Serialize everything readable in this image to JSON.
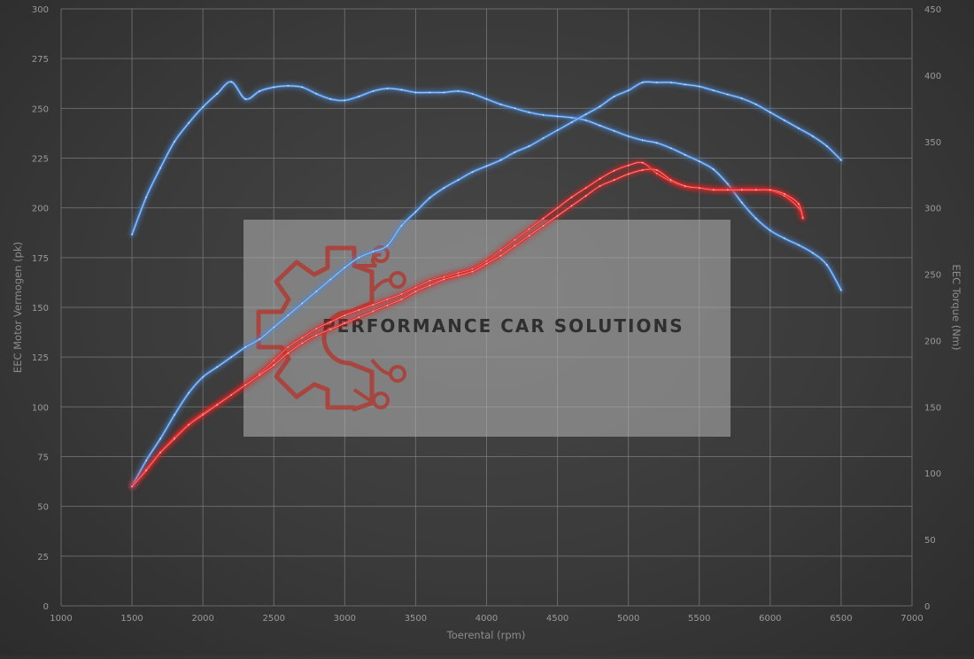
{
  "chart_data": {
    "type": "line",
    "title": "",
    "xlabel": "Toerental (rpm)",
    "ylabel_left": "EEC Motor Vermogen (pk)",
    "ylabel_right": "EEC Torque (Nm)",
    "xlim": [
      1000,
      7000
    ],
    "ylim_left": [
      0,
      300
    ],
    "ylim_right": [
      0,
      450
    ],
    "x_ticks": [
      1000,
      1500,
      2000,
      2500,
      3000,
      3500,
      4000,
      4500,
      5000,
      5500,
      6000,
      6500,
      7000
    ],
    "y_left_ticks": [
      0,
      25,
      50,
      75,
      100,
      125,
      150,
      175,
      200,
      225,
      250,
      275,
      300
    ],
    "y_right_ticks": [
      0,
      50,
      100,
      150,
      200,
      250,
      300,
      350,
      400,
      450
    ],
    "grid": true,
    "series": [
      {
        "axis": "right",
        "color": "#4d8fe0",
        "points": [
          [
            1500,
            280
          ],
          [
            1600,
            308
          ],
          [
            1700,
            330
          ],
          [
            1800,
            350
          ],
          [
            1900,
            364
          ],
          [
            2000,
            376
          ],
          [
            2100,
            386
          ],
          [
            2200,
            395
          ],
          [
            2300,
            382
          ],
          [
            2400,
            388
          ],
          [
            2500,
            391
          ],
          [
            2600,
            392
          ],
          [
            2700,
            391
          ],
          [
            2800,
            386
          ],
          [
            2900,
            382
          ],
          [
            3000,
            381
          ],
          [
            3100,
            384
          ],
          [
            3200,
            388
          ],
          [
            3300,
            390
          ],
          [
            3400,
            389
          ],
          [
            3500,
            387
          ],
          [
            3600,
            387
          ],
          [
            3700,
            387
          ],
          [
            3800,
            388
          ],
          [
            3900,
            386
          ],
          [
            4000,
            382
          ],
          [
            4100,
            378
          ],
          [
            4200,
            375
          ],
          [
            4300,
            372
          ],
          [
            4400,
            370
          ],
          [
            4500,
            369
          ],
          [
            4600,
            368
          ],
          [
            4700,
            366
          ],
          [
            4800,
            362
          ],
          [
            4900,
            358
          ],
          [
            5000,
            354
          ],
          [
            5100,
            351
          ],
          [
            5200,
            349
          ],
          [
            5300,
            345
          ],
          [
            5400,
            340
          ],
          [
            5500,
            335
          ],
          [
            5600,
            329
          ],
          [
            5700,
            318
          ],
          [
            5800,
            304
          ],
          [
            5900,
            292
          ],
          [
            6000,
            283
          ],
          [
            6100,
            277
          ],
          [
            6200,
            272
          ],
          [
            6300,
            266
          ],
          [
            6400,
            257
          ],
          [
            6500,
            238
          ]
        ]
      },
      {
        "axis": "right",
        "color": "#e02828",
        "points": [
          [
            1500,
            90
          ],
          [
            1600,
            103
          ],
          [
            1700,
            116
          ],
          [
            1800,
            127
          ],
          [
            1900,
            137
          ],
          [
            2000,
            145
          ],
          [
            2100,
            152
          ],
          [
            2200,
            159
          ],
          [
            2300,
            167
          ],
          [
            2400,
            175
          ],
          [
            2500,
            185
          ],
          [
            2600,
            195
          ],
          [
            2700,
            202
          ],
          [
            2800,
            209
          ],
          [
            2900,
            214
          ],
          [
            3000,
            219
          ],
          [
            3100,
            223
          ],
          [
            3200,
            227
          ],
          [
            3300,
            231
          ],
          [
            3400,
            235
          ],
          [
            3500,
            240
          ],
          [
            3600,
            245
          ],
          [
            3700,
            248
          ],
          [
            3800,
            251
          ],
          [
            3900,
            254
          ],
          [
            4000,
            260
          ],
          [
            4100,
            268
          ],
          [
            4200,
            276
          ],
          [
            4300,
            284
          ],
          [
            4400,
            292
          ],
          [
            4500,
            300
          ],
          [
            4600,
            308
          ],
          [
            4700,
            315
          ],
          [
            4800,
            322
          ],
          [
            4900,
            328
          ],
          [
            5000,
            332
          ],
          [
            5100,
            334
          ],
          [
            5200,
            326
          ],
          [
            5300,
            320
          ],
          [
            5400,
            316
          ],
          [
            5500,
            315
          ],
          [
            5600,
            314
          ],
          [
            5700,
            314
          ],
          [
            5800,
            314
          ],
          [
            5900,
            314
          ],
          [
            6000,
            313
          ],
          [
            6100,
            309
          ],
          [
            6200,
            300
          ],
          [
            6230,
            292
          ]
        ]
      },
      {
        "axis": "left",
        "color": "#4d8fe0",
        "points": [
          [
            1500,
            60
          ],
          [
            1600,
            73
          ],
          [
            1700,
            84
          ],
          [
            1800,
            96
          ],
          [
            1900,
            107
          ],
          [
            2000,
            115
          ],
          [
            2100,
            120
          ],
          [
            2200,
            125
          ],
          [
            2300,
            130
          ],
          [
            2400,
            134
          ],
          [
            2500,
            140
          ],
          [
            2600,
            146
          ],
          [
            2700,
            152
          ],
          [
            2800,
            158
          ],
          [
            2900,
            164
          ],
          [
            3000,
            170
          ],
          [
            3100,
            175
          ],
          [
            3200,
            178
          ],
          [
            3300,
            181
          ],
          [
            3400,
            191
          ],
          [
            3500,
            198
          ],
          [
            3600,
            205
          ],
          [
            3700,
            210
          ],
          [
            3800,
            214
          ],
          [
            3900,
            218
          ],
          [
            4000,
            221
          ],
          [
            4100,
            224
          ],
          [
            4200,
            228
          ],
          [
            4300,
            231
          ],
          [
            4400,
            235
          ],
          [
            4500,
            239
          ],
          [
            4600,
            243
          ],
          [
            4700,
            247
          ],
          [
            4800,
            251
          ],
          [
            4900,
            256
          ],
          [
            5000,
            259
          ],
          [
            5100,
            263
          ],
          [
            5200,
            263
          ],
          [
            5300,
            263
          ],
          [
            5400,
            262
          ],
          [
            5500,
            261
          ],
          [
            5600,
            259
          ],
          [
            5700,
            257
          ],
          [
            5800,
            255
          ],
          [
            5900,
            252
          ],
          [
            6000,
            248
          ],
          [
            6100,
            244
          ],
          [
            6200,
            240
          ],
          [
            6300,
            236
          ],
          [
            6400,
            231
          ],
          [
            6500,
            224
          ]
        ]
      },
      {
        "axis": "left",
        "color": "#e02828",
        "points": [
          [
            1500,
            60
          ],
          [
            1600,
            68
          ],
          [
            1700,
            77
          ],
          [
            1800,
            84
          ],
          [
            1900,
            91
          ],
          [
            2000,
            96
          ],
          [
            2100,
            101
          ],
          [
            2200,
            106
          ],
          [
            2300,
            111
          ],
          [
            2400,
            116
          ],
          [
            2500,
            121
          ],
          [
            2600,
            127
          ],
          [
            2700,
            132
          ],
          [
            2800,
            136
          ],
          [
            2900,
            139
          ],
          [
            3000,
            142
          ],
          [
            3100,
            145
          ],
          [
            3200,
            148
          ],
          [
            3300,
            151
          ],
          [
            3400,
            154
          ],
          [
            3500,
            158
          ],
          [
            3600,
            161
          ],
          [
            3700,
            164
          ],
          [
            3800,
            166
          ],
          [
            3900,
            168
          ],
          [
            4000,
            172
          ],
          [
            4100,
            176
          ],
          [
            4200,
            181
          ],
          [
            4300,
            186
          ],
          [
            4400,
            191
          ],
          [
            4500,
            196
          ],
          [
            4600,
            201
          ],
          [
            4700,
            206
          ],
          [
            4800,
            211
          ],
          [
            4900,
            214
          ],
          [
            5000,
            217
          ],
          [
            5100,
            219
          ],
          [
            5200,
            219
          ],
          [
            5300,
            214
          ],
          [
            5400,
            211
          ],
          [
            5500,
            210
          ],
          [
            5600,
            209
          ],
          [
            5700,
            209
          ],
          [
            5800,
            209
          ],
          [
            5900,
            209
          ],
          [
            6000,
            209
          ],
          [
            6100,
            207
          ],
          [
            6200,
            202
          ],
          [
            6230,
            195
          ]
        ]
      }
    ]
  },
  "logo": {
    "text": "PERFORMANCE CAR SOLUTIONS",
    "icon": "gear-circuit-icon",
    "icon_color": "#c0392b"
  }
}
